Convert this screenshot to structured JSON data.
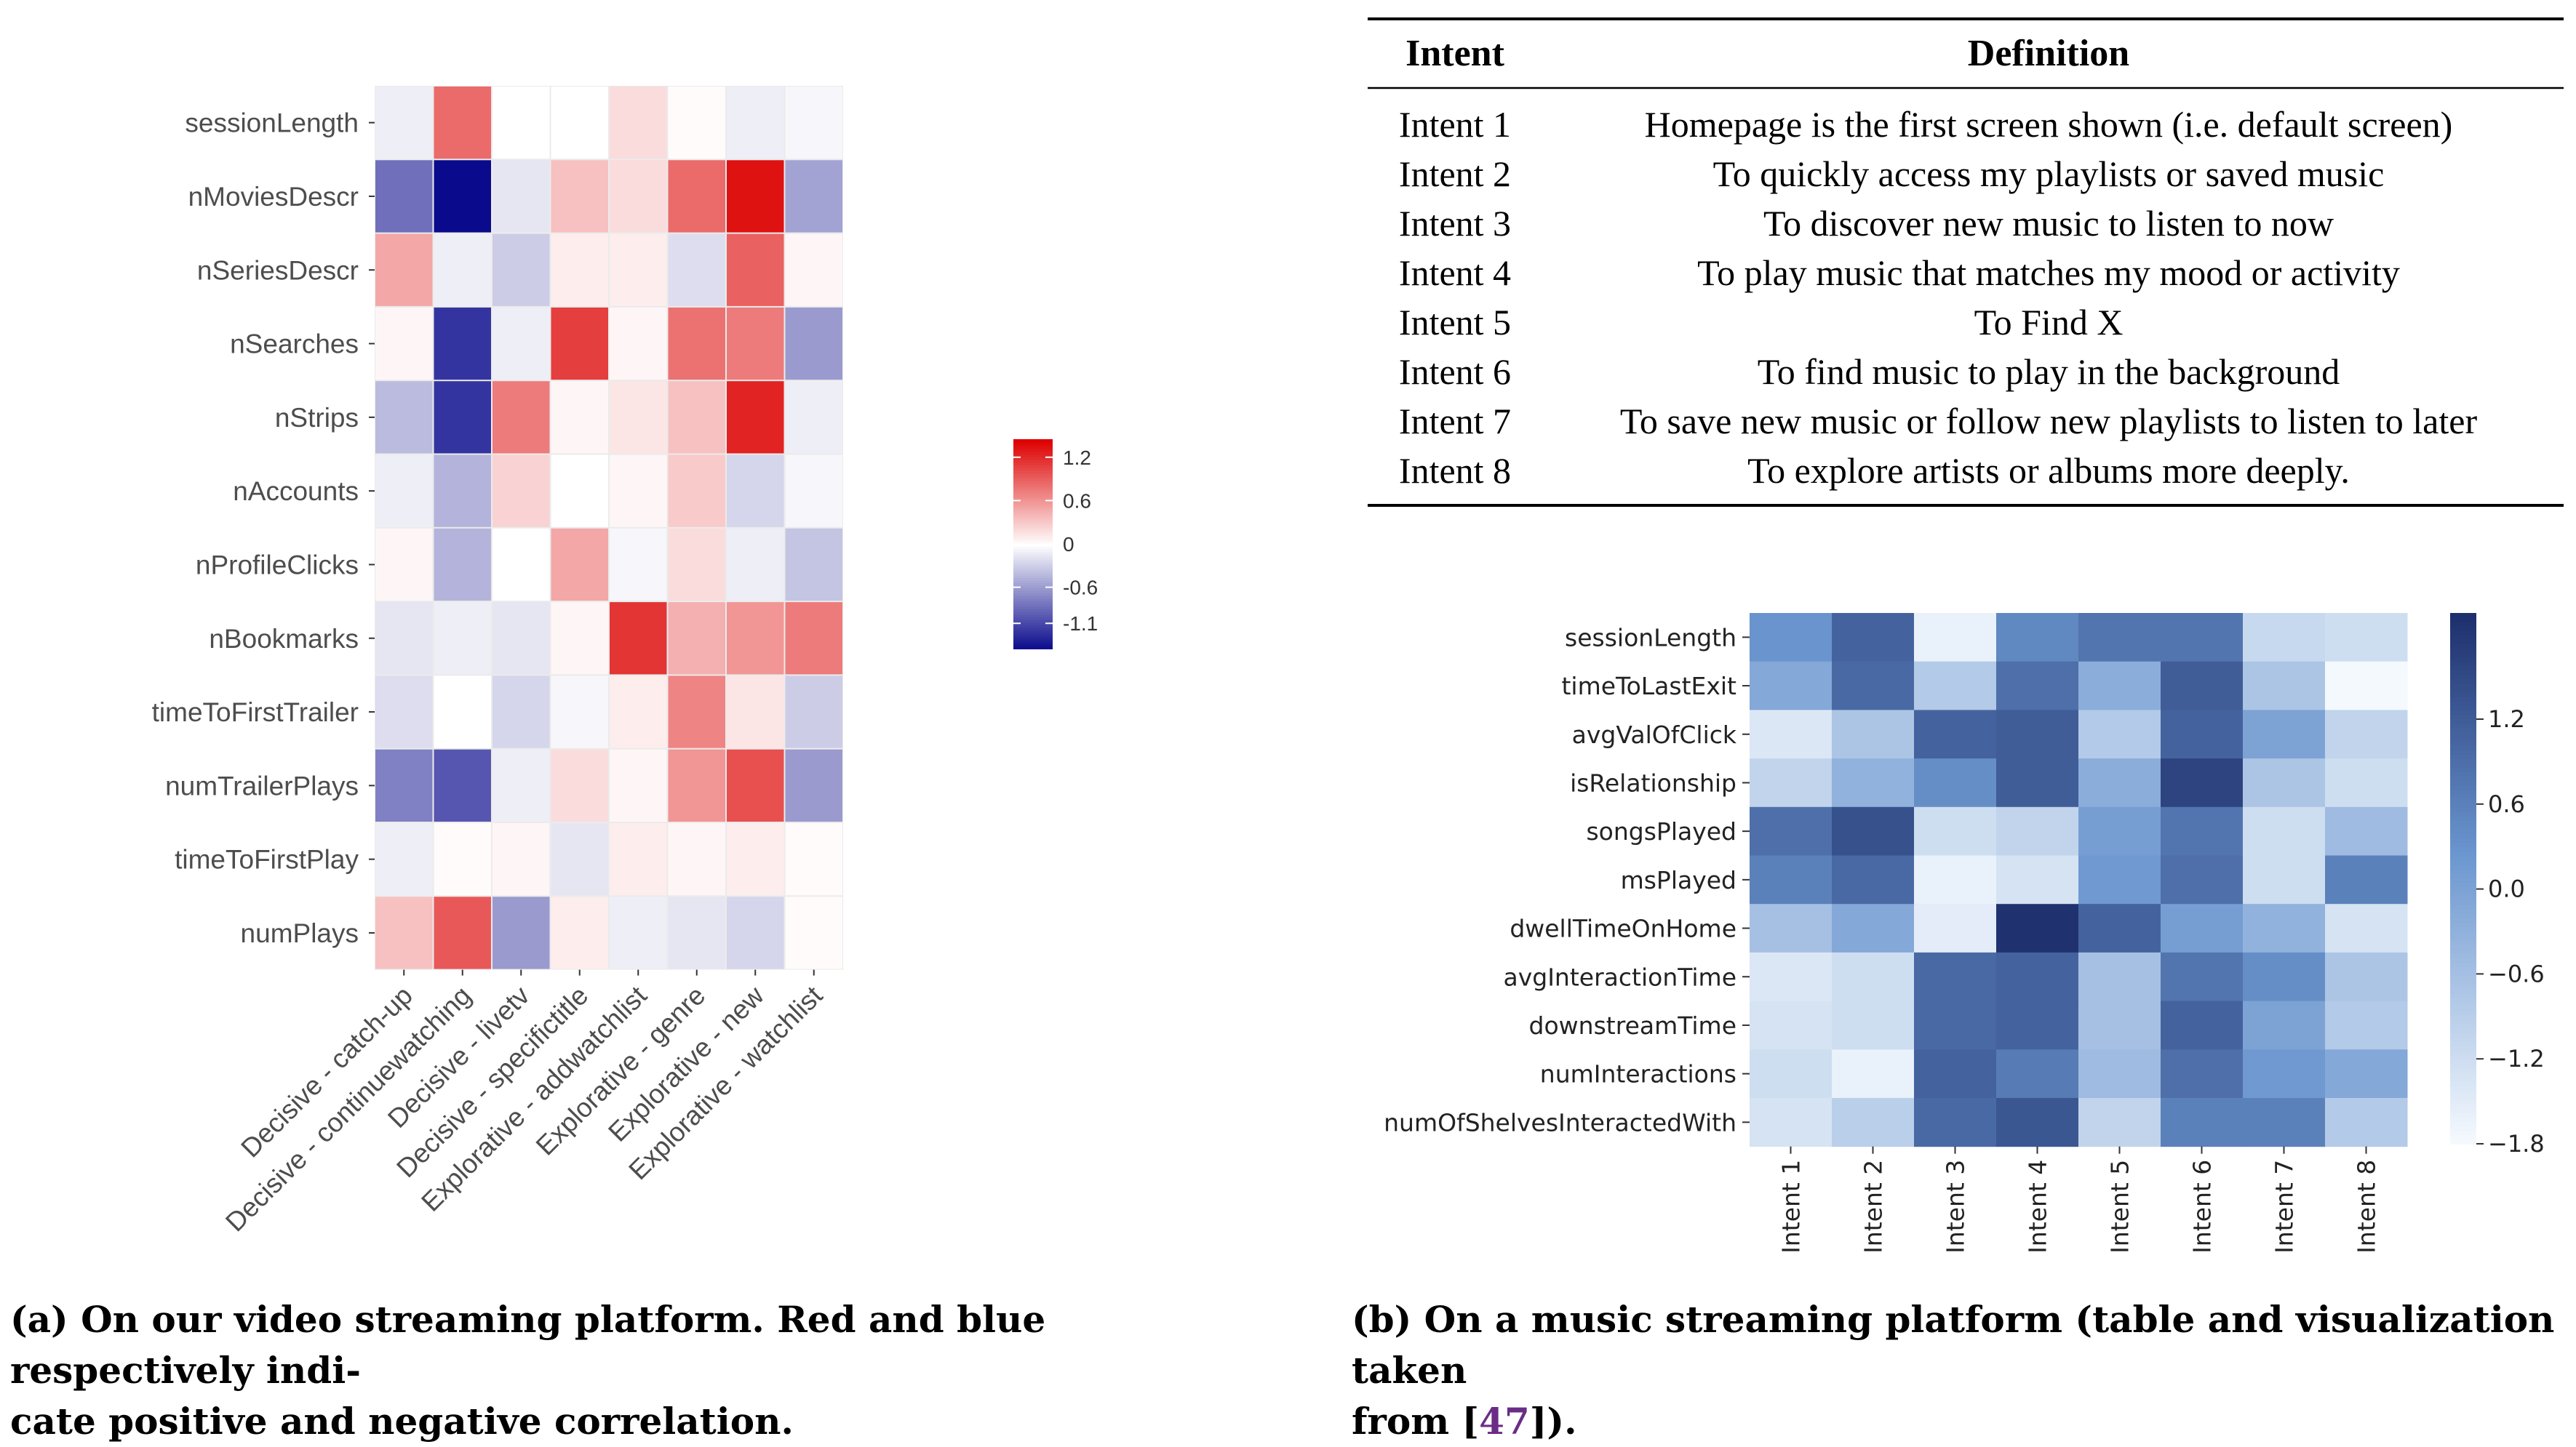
{
  "chart_data": [
    {
      "type": "heatmap",
      "title": "",
      "rows": [
        "sessionLength",
        "nMoviesDescr",
        "nSeriesDescr",
        "nSearches",
        "nStrips",
        "nAccounts",
        "nProfileClicks",
        "nBookmarks",
        "timeToFirstTrailer",
        "numTrailerPlays",
        "timeToFirstPlay",
        "numPlays"
      ],
      "columns": [
        "Decisive - catch-up",
        "Decisive - continuewatching",
        "Decisive - livetv",
        "Decisive - specifictitle",
        "Explorative - addwatchlist",
        "Explorative - genre",
        "Explorative - new",
        "Explorative - watchlist"
      ],
      "values": [
        [
          -0.1,
          0.85,
          0.0,
          0.0,
          0.2,
          0.02,
          -0.1,
          -0.05
        ],
        [
          -0.85,
          -1.45,
          -0.15,
          0.35,
          0.2,
          0.85,
          1.35,
          -0.55
        ],
        [
          0.5,
          -0.1,
          -0.3,
          0.1,
          0.1,
          -0.2,
          0.9,
          0.05
        ],
        [
          0.05,
          -1.2,
          -0.1,
          1.1,
          0.05,
          0.8,
          0.75,
          -0.6
        ],
        [
          -0.4,
          -1.2,
          0.75,
          0.05,
          0.15,
          0.35,
          1.25,
          -0.1
        ],
        [
          -0.1,
          -0.45,
          0.25,
          0.0,
          0.05,
          0.3,
          -0.25,
          -0.05
        ],
        [
          0.05,
          -0.45,
          0.0,
          0.5,
          -0.05,
          0.2,
          -0.1,
          -0.35
        ],
        [
          -0.15,
          -0.1,
          -0.15,
          0.05,
          1.15,
          0.45,
          0.6,
          0.75
        ],
        [
          -0.2,
          0.0,
          -0.25,
          -0.05,
          0.1,
          0.7,
          0.15,
          -0.3
        ],
        [
          -0.75,
          -1.0,
          -0.1,
          0.2,
          0.05,
          0.6,
          1.0,
          -0.6
        ],
        [
          -0.1,
          0.02,
          0.05,
          -0.15,
          0.1,
          0.05,
          0.1,
          0.02
        ],
        [
          0.35,
          0.95,
          -0.6,
          0.1,
          -0.1,
          -0.15,
          -0.25,
          0.02
        ]
      ],
      "colorbar": {
        "ticks": [
          1.2,
          0.6,
          0,
          -0.6,
          -1.1
        ],
        "range": [
          -1.45,
          1.45
        ],
        "colors": [
          "#0a0a8c",
          "#ffffff",
          "#dd0000"
        ]
      },
      "caption": "(a) On our video streaming platform. Red and blue respectively indi-cate positive and negative correlation.",
      "caption_lines": [
        "(a) On our video streaming platform. Red and blue respectively indi-",
        "cate positive and negative correlation."
      ]
    },
    {
      "type": "table",
      "columns": [
        "Intent",
        "Definition"
      ],
      "rows": [
        [
          "Intent 1",
          "Homepage is the first screen shown (i.e. default screen)"
        ],
        [
          "Intent 2",
          "To quickly access my playlists or saved music"
        ],
        [
          "Intent 3",
          "To discover new music to listen to now"
        ],
        [
          "Intent 4",
          "To play music that matches my mood or activity"
        ],
        [
          "Intent 5",
          "To Find X"
        ],
        [
          "Intent 6",
          "To find music to play in the background"
        ],
        [
          "Intent 7",
          "To save new music or follow new playlists to listen to later"
        ],
        [
          "Intent 8",
          "To explore artists or albums more deeply."
        ]
      ]
    },
    {
      "type": "heatmap",
      "title": "",
      "rows": [
        "sessionLength",
        "timeToLastExit",
        "avgValOfClick",
        "isRelationship",
        "songsPlayed",
        "msPlayed",
        "dwellTimeOnHome",
        "avgInteractionTime",
        "downstreamTime",
        "numInteractions",
        "numOfShelvesInteractedWith"
      ],
      "columns": [
        "Intent 1",
        "Intent 2",
        "Intent 3",
        "Intent 4",
        "Intent 5",
        "Intent 6",
        "Intent 7",
        "Intent 8"
      ],
      "values": [
        [
          0.3,
          1.1,
          -1.6,
          0.5,
          0.8,
          0.8,
          -1.1,
          -1.2
        ],
        [
          -0.1,
          1.0,
          -0.8,
          0.9,
          -0.2,
          1.2,
          -0.7,
          -1.75
        ],
        [
          -1.4,
          -0.7,
          1.1,
          1.2,
          -0.8,
          1.1,
          0.0,
          -1.0
        ],
        [
          -1.0,
          -0.3,
          0.4,
          1.2,
          -0.2,
          1.6,
          -0.7,
          -1.2
        ],
        [
          0.9,
          1.4,
          -1.2,
          -1.0,
          0.1,
          0.8,
          -1.2,
          -0.5
        ],
        [
          0.6,
          1.0,
          -1.6,
          -1.3,
          0.2,
          0.9,
          -1.2,
          0.6
        ],
        [
          -0.6,
          -0.1,
          -1.5,
          1.9,
          1.1,
          0.1,
          -0.3,
          -1.3
        ],
        [
          -1.4,
          -1.2,
          1.0,
          1.1,
          -0.6,
          0.8,
          0.4,
          -0.7
        ],
        [
          -1.3,
          -1.2,
          1.0,
          1.1,
          -0.6,
          1.1,
          0.0,
          -0.8
        ],
        [
          -1.2,
          -1.6,
          1.1,
          0.7,
          -0.5,
          0.9,
          0.2,
          -0.1
        ],
        [
          -1.3,
          -0.9,
          1.0,
          1.3,
          -1.0,
          0.6,
          0.6,
          -0.8
        ]
      ],
      "colorbar": {
        "ticks": [
          1.2,
          0.6,
          0.0,
          -0.6,
          -1.2,
          -1.8
        ],
        "tick_labels": [
          "1.2",
          "0.6",
          "0.0",
          "−0.6",
          "−1.2",
          "−1.8"
        ],
        "range": [
          -1.8,
          1.95
        ],
        "colors": [
          "#f7fbff",
          "#6b96cf",
          "#1d2f6c"
        ]
      },
      "caption_lines": [
        "(b) On a music streaming platform (table and visualization taken",
        "from [47])."
      ],
      "caption": "(b) On a music streaming platform (table and visualization taken from [47])."
    }
  ]
}
